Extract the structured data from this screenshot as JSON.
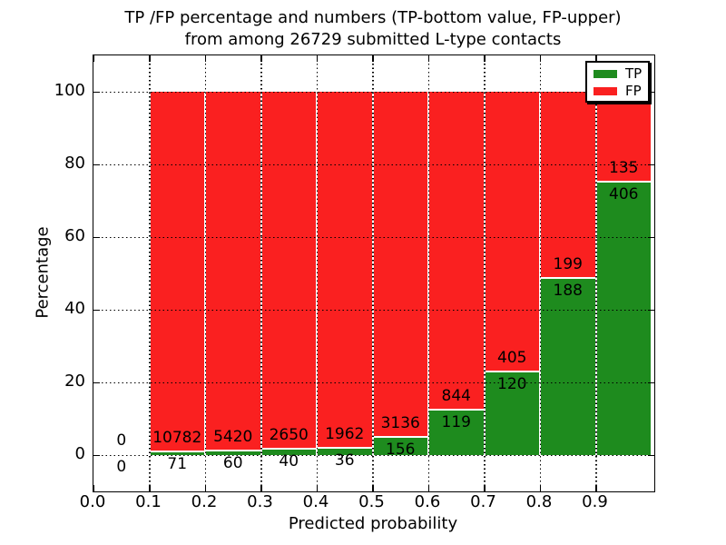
{
  "title": {
    "line1": "TP /FP percentage and numbers (TP-bottom value, FP-upper)",
    "line2": "from among 26729 submitted L-type contacts"
  },
  "y_axis": {
    "label": "Percentage",
    "ticks": [
      "0",
      "20",
      "40",
      "60",
      "80",
      "100"
    ]
  },
  "x_axis": {
    "label": "Predicted probability",
    "ticks": [
      "0.0",
      "0.1",
      "0.2",
      "0.3",
      "0.4",
      "0.5",
      "0.6",
      "0.7",
      "0.8",
      "0.9"
    ]
  },
  "legend": {
    "items": [
      {
        "label": "TP",
        "color": "#1e8b1e"
      },
      {
        "label": "FP",
        "color": "#fa2020"
      }
    ]
  },
  "chart_data": {
    "type": "bar",
    "stacked": true,
    "normalized": "each bar totals 100%",
    "title": "TP /FP percentage and numbers (TP-bottom value, FP-upper) from among 26729 submitted L-type contacts",
    "xlabel": "Predicted probability",
    "ylabel": "Percentage",
    "total_contacts": 26729,
    "bin_width": 0.1,
    "bin_starts": [
      0.0,
      0.1,
      0.2,
      0.3,
      0.4,
      0.5,
      0.6,
      0.7,
      0.8,
      0.9
    ],
    "series": [
      {
        "name": "TP",
        "position": "bottom",
        "color": "#1e8b1e",
        "counts": [
          0,
          71,
          60,
          40,
          36,
          156,
          119,
          120,
          188,
          406
        ]
      },
      {
        "name": "FP",
        "position": "top",
        "color": "#fa2020",
        "counts": [
          0,
          10782,
          5420,
          2650,
          1962,
          3136,
          844,
          405,
          199,
          135
        ]
      }
    ],
    "tp_percent_per_bin": [
      0,
      0.65,
      1.09,
      1.49,
      1.8,
      4.74,
      12.36,
      22.86,
      48.58,
      75.05
    ],
    "ylim": [
      -10,
      110
    ],
    "xlim": [
      0,
      1.0
    ],
    "yticks": [
      0,
      20,
      40,
      60,
      80,
      100
    ],
    "grid": {
      "style": "dotted",
      "color": "#000000",
      "on": true
    },
    "legend_position": "upper right"
  }
}
